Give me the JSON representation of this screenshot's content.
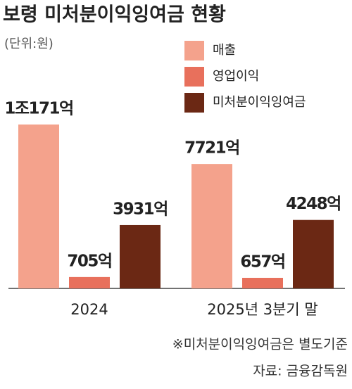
{
  "chart_data": {
    "type": "bar",
    "title": "보령 미처분이익잉여금 현황",
    "subtitle": "(단위:원)",
    "categories": [
      "2024",
      "2025년 3분기 말"
    ],
    "series": [
      {
        "name": "매출",
        "color": "#f4a28c",
        "values": [
          10171,
          7721
        ],
        "value_labels": [
          "1조171억",
          "7721억"
        ]
      },
      {
        "name": "영업이익",
        "color": "#e8705c",
        "values": [
          705,
          657
        ],
        "value_labels": [
          "705억",
          "657억"
        ]
      },
      {
        "name": "미처분이익잉여금",
        "color": "#6b2814",
        "values": [
          3931,
          4248
        ],
        "value_labels": [
          "3931억",
          "4248억"
        ]
      }
    ],
    "note": "※미처분이익잉여금은 별도기준",
    "source": "자료: 금융감독원"
  }
}
